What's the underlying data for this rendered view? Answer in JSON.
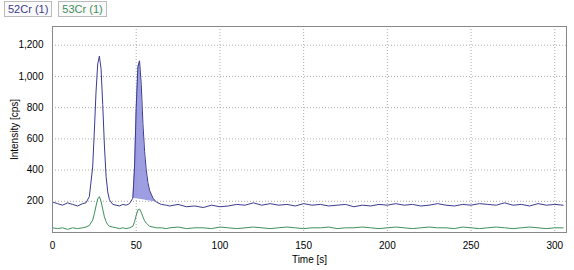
{
  "chart_data": {
    "type": "line",
    "x_label": "Time [s]",
    "y_label": "Intensity [cps]",
    "xlim": [
      0,
      307
    ],
    "ylim": [
      0,
      1320
    ],
    "xticks": [
      0,
      50,
      100,
      150,
      200,
      250,
      300
    ],
    "yticks": [
      200,
      400,
      600,
      800,
      1000,
      1200
    ],
    "grid": true,
    "legend": "top-left",
    "x": [
      0,
      3,
      6,
      9,
      12,
      15,
      18,
      20,
      22,
      24,
      25,
      26,
      27,
      28,
      29,
      30,
      31,
      32,
      33,
      34,
      36,
      38,
      40,
      42,
      44,
      46,
      48,
      49,
      50,
      51,
      52,
      53,
      54,
      55,
      56,
      57,
      58,
      60,
      62,
      65,
      68,
      70,
      75,
      80,
      85,
      90,
      95,
      100,
      105,
      110,
      115,
      120,
      125,
      130,
      135,
      140,
      145,
      150,
      155,
      160,
      165,
      170,
      175,
      180,
      185,
      190,
      195,
      200,
      205,
      210,
      215,
      220,
      225,
      230,
      235,
      240,
      245,
      250,
      255,
      260,
      265,
      270,
      275,
      280,
      285,
      290,
      295,
      300,
      305
    ],
    "series": [
      {
        "name": "52Cr (1)",
        "color": "#3b3b8f",
        "highlight": [
          48,
          62
        ],
        "values": [
          195,
          185,
          175,
          190,
          180,
          170,
          185,
          190,
          230,
          420,
          650,
          900,
          1080,
          1130,
          1050,
          820,
          560,
          360,
          260,
          210,
          180,
          175,
          170,
          180,
          175,
          185,
          220,
          420,
          800,
          1060,
          1100,
          950,
          700,
          520,
          400,
          320,
          270,
          220,
          195,
          180,
          175,
          170,
          180,
          165,
          170,
          160,
          175,
          165,
          170,
          180,
          175,
          190,
          175,
          185,
          175,
          180,
          170,
          185,
          175,
          180,
          170,
          175,
          180,
          165,
          175,
          170,
          180,
          175,
          185,
          175,
          180,
          170,
          175,
          185,
          175,
          170,
          180,
          175,
          185,
          180,
          175,
          190,
          175,
          180,
          170,
          185,
          175,
          180,
          175
        ]
      },
      {
        "name": "53Cr (1)",
        "color": "#3f8f5c",
        "values": [
          30,
          25,
          30,
          20,
          30,
          25,
          30,
          35,
          45,
          80,
          120,
          170,
          215,
          230,
          200,
          150,
          100,
          70,
          50,
          40,
          35,
          30,
          25,
          30,
          25,
          30,
          40,
          70,
          110,
          145,
          150,
          130,
          100,
          75,
          60,
          50,
          40,
          35,
          30,
          30,
          25,
          30,
          35,
          25,
          30,
          30,
          25,
          35,
          30,
          25,
          30,
          35,
          30,
          25,
          30,
          35,
          30,
          25,
          30,
          30,
          35,
          25,
          30,
          30,
          35,
          30,
          25,
          30,
          35,
          30,
          25,
          30,
          35,
          30,
          30,
          25,
          35,
          30,
          25,
          30,
          35,
          30,
          25,
          30,
          35,
          30,
          25,
          30,
          30
        ]
      }
    ]
  }
}
